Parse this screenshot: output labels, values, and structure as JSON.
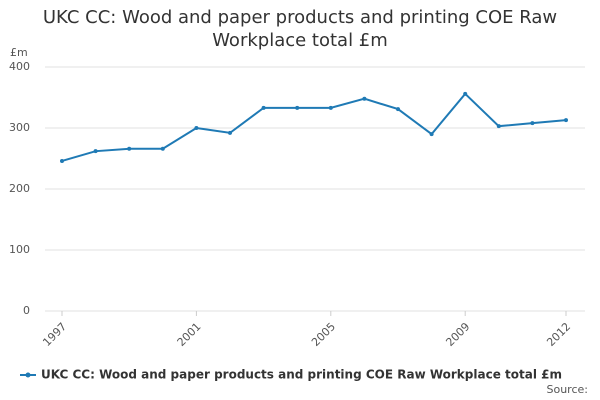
{
  "chart_data": {
    "type": "line",
    "title": "UKC CC: Wood and paper products and printing COE Raw Workplace total £m",
    "y_label": "£m",
    "source": "Source:",
    "categories": [
      "1997",
      null,
      null,
      null,
      "2001",
      null,
      null,
      null,
      "2005",
      null,
      null,
      null,
      "2009",
      null,
      null,
      "2012"
    ],
    "series": [
      {
        "name": "UKC CC: Wood and paper products and printing COE Raw Workplace total £m",
        "color": "#1f7ab5",
        "values": [
          246,
          262,
          266,
          266,
          300,
          292,
          333,
          333,
          333,
          348,
          331,
          290,
          356,
          303,
          308,
          313
        ]
      }
    ],
    "ylim": [
      0,
      400
    ],
    "yticks": [
      0,
      100,
      200,
      300,
      400
    ],
    "grid": true,
    "legend": "bottom"
  }
}
